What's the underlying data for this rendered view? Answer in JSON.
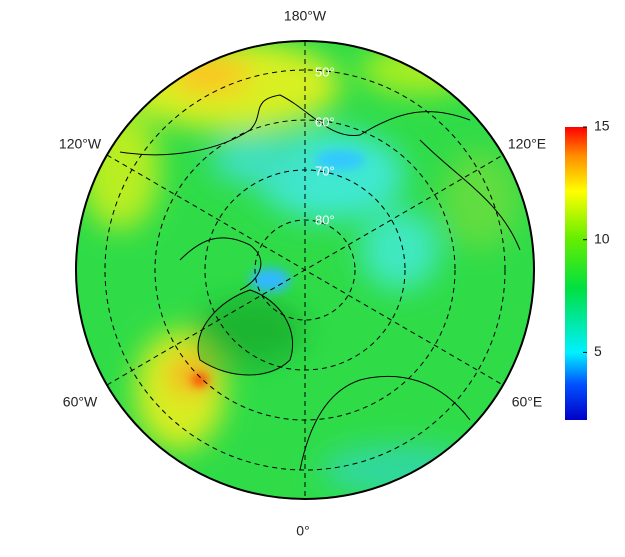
{
  "map": {
    "longitude_labels": {
      "top": "180°W",
      "upper_left": "120°W",
      "upper_right": "120°E",
      "lower_left": "60°W",
      "lower_right": "60°E",
      "bottom": "0°"
    },
    "latitude_labels": [
      "50°",
      "60°",
      "70°",
      "80°"
    ]
  },
  "colorbar": {
    "range": [
      2,
      15
    ],
    "ticks": [
      5,
      10,
      15
    ]
  }
}
